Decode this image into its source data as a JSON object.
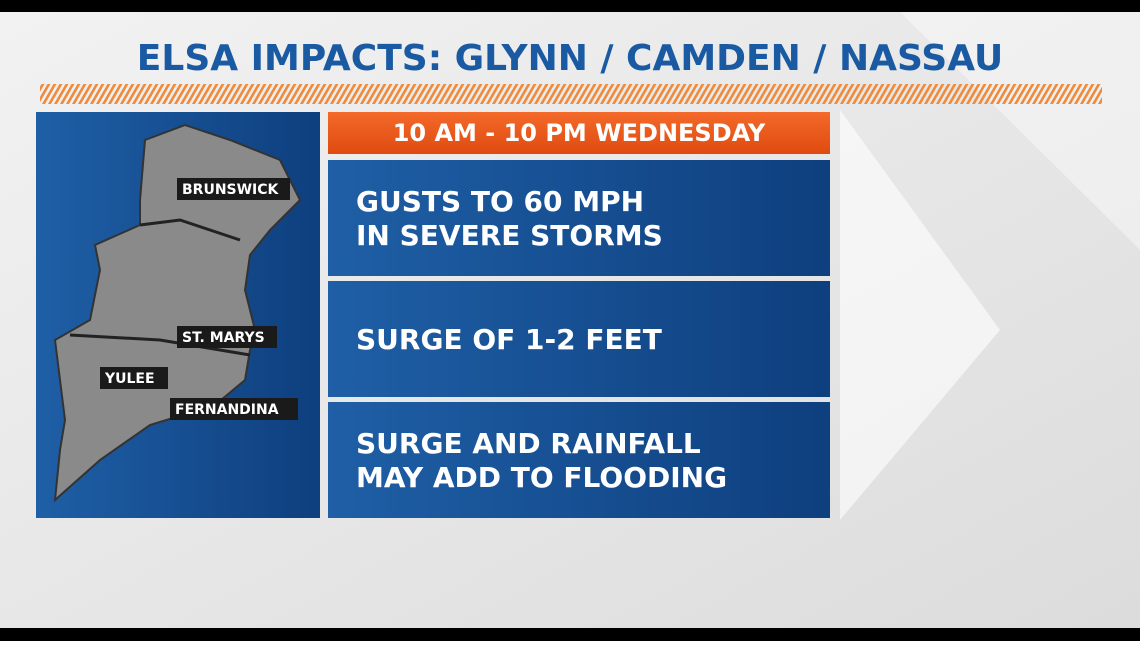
{
  "header": {
    "title": "ELSA IMPACTS: GLYNN / CAMDEN / NASSAU"
  },
  "map": {
    "labels": [
      "BRUNSWICK",
      "ST. MARYS",
      "YULEE",
      "FERNANDINA"
    ]
  },
  "panel": {
    "timeframe": "10 AM - 10 PM WEDNESDAY",
    "impacts": [
      [
        "GUSTS TO 60 MPH",
        "IN SEVERE STORMS"
      ],
      [
        "SURGE OF 1-2 FEET"
      ],
      [
        "SURGE AND RAINFALL",
        "MAY ADD TO FLOODING"
      ]
    ]
  }
}
